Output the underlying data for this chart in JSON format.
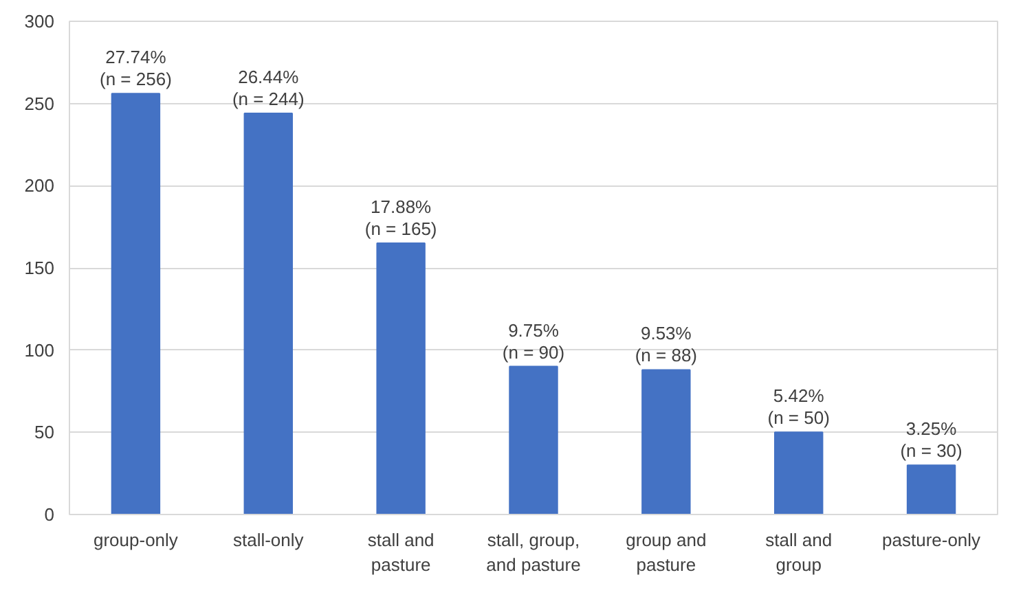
{
  "chart_data": {
    "type": "bar",
    "categories": [
      "group-only",
      "stall-only",
      "stall and pasture",
      "stall, group, and pasture",
      "group and pasture",
      "stall and group",
      "pasture-only"
    ],
    "values": [
      256,
      244,
      165,
      90,
      88,
      50,
      30
    ],
    "color": "#4472c4",
    "value_labels": [
      "27.74%\n(n = 256)",
      "26.44%\n(n = 244)",
      "17.88%\n(n = 165)",
      "9.75%\n(n = 90)",
      "9.53%\n(n = 88)",
      "5.42%\n(n = 50)",
      "3.25%\n(n = 30)"
    ],
    "ylim": [
      0,
      300
    ],
    "yticks": [
      0,
      50,
      100,
      150,
      200,
      250,
      300
    ],
    "grid": "y"
  }
}
